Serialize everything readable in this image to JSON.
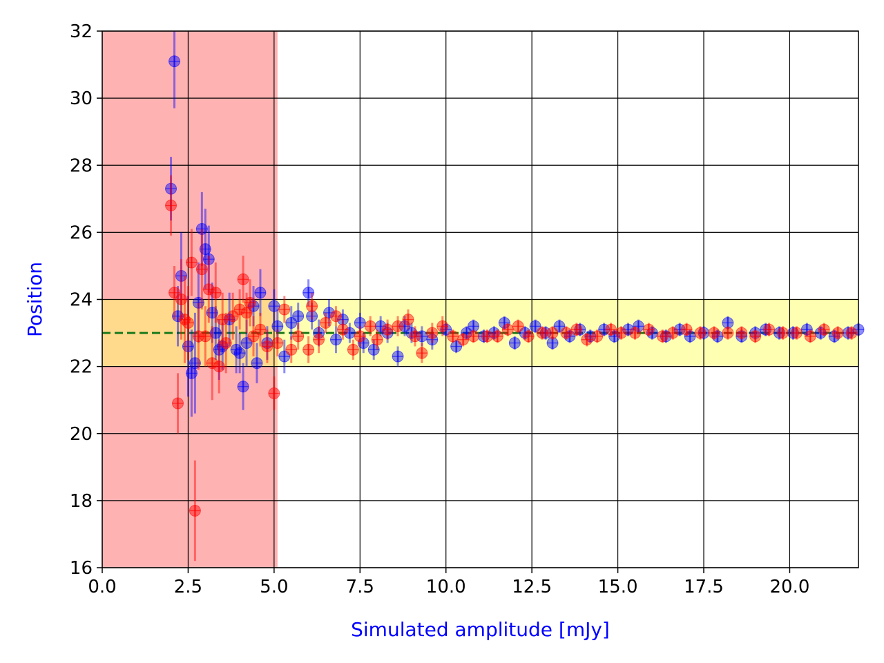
{
  "chart_data": {
    "type": "scatter",
    "xlabel": "Simulated amplitude [mJy]",
    "ylabel": "Position",
    "xlim": [
      0,
      22
    ],
    "ylim": [
      16,
      32
    ],
    "xticks": [
      0.0,
      2.5,
      5.0,
      7.5,
      10.0,
      12.5,
      15.0,
      17.5,
      20.0
    ],
    "xtick_labels": [
      "0.0",
      "2.5",
      "5.0",
      "7.5",
      "10.0",
      "12.5",
      "15.0",
      "17.5",
      "20.0"
    ],
    "yticks": [
      16,
      18,
      20,
      22,
      24,
      26,
      28,
      30,
      32
    ],
    "ytick_labels": [
      "16",
      "18",
      "20",
      "22",
      "24",
      "26",
      "28",
      "30",
      "32"
    ],
    "grid": true,
    "label_color": "#0000ff",
    "shaded_regions": [
      {
        "x": [
          0,
          5.1
        ],
        "y": [
          16,
          32
        ],
        "color": "#ff7f7f",
        "opacity": 0.6
      },
      {
        "x": [
          0,
          22
        ],
        "y": [
          22,
          24
        ],
        "color": "#ffff66",
        "opacity": 0.5
      }
    ],
    "reference_line": {
      "y": 23,
      "style": "dashed",
      "color": "#1a7a1a"
    },
    "series": [
      {
        "color": "#0000ff",
        "points": [
          [
            2.0,
            27.3,
            0.95
          ],
          [
            2.1,
            31.1,
            1.4
          ],
          [
            2.2,
            23.5,
            0.9
          ],
          [
            2.3,
            24.7,
            1.3
          ],
          [
            2.5,
            22.6,
            1.5
          ],
          [
            2.6,
            21.8,
            1.3
          ],
          [
            2.7,
            22.1,
            1.5
          ],
          [
            2.8,
            23.9,
            1.2
          ],
          [
            2.9,
            26.1,
            1.1
          ],
          [
            3.0,
            25.5,
            1.2
          ],
          [
            3.1,
            25.2,
            1.0
          ],
          [
            3.2,
            23.6,
            0.9
          ],
          [
            3.3,
            23.0,
            0.8
          ],
          [
            3.4,
            22.5,
            0.9
          ],
          [
            3.5,
            22.6,
            0.7
          ],
          [
            3.7,
            23.4,
            0.8
          ],
          [
            3.9,
            22.5,
            0.7
          ],
          [
            4.0,
            22.4,
            0.6
          ],
          [
            4.1,
            21.4,
            0.7
          ],
          [
            4.2,
            22.7,
            0.7
          ],
          [
            4.4,
            23.8,
            0.6
          ],
          [
            4.5,
            22.1,
            0.6
          ],
          [
            4.6,
            24.2,
            0.7
          ],
          [
            4.8,
            22.7,
            0.5
          ],
          [
            5.0,
            23.8,
            0.5
          ],
          [
            5.1,
            23.2,
            0.5
          ],
          [
            5.3,
            22.3,
            0.5
          ],
          [
            5.5,
            23.3,
            0.5
          ],
          [
            5.7,
            23.5,
            0.4
          ],
          [
            6.0,
            24.2,
            0.4
          ],
          [
            6.1,
            23.5,
            0.4
          ],
          [
            6.3,
            23.0,
            0.4
          ],
          [
            6.6,
            23.6,
            0.4
          ],
          [
            6.8,
            22.8,
            0.4
          ],
          [
            7.0,
            23.4,
            0.3
          ],
          [
            7.2,
            23.0,
            0.3
          ],
          [
            7.5,
            23.3,
            0.3
          ],
          [
            7.6,
            22.7,
            0.3
          ],
          [
            7.9,
            22.5,
            0.3
          ],
          [
            8.1,
            23.2,
            0.3
          ],
          [
            8.3,
            23.0,
            0.3
          ],
          [
            8.6,
            22.3,
            0.3
          ],
          [
            8.8,
            23.2,
            0.3
          ],
          [
            9.0,
            23.0,
            0.3
          ],
          [
            9.3,
            22.9,
            0.3
          ],
          [
            9.6,
            22.8,
            0.3
          ],
          [
            10.0,
            23.1,
            0.2
          ],
          [
            10.3,
            22.6,
            0.2
          ],
          [
            10.6,
            23.0,
            0.2
          ],
          [
            10.8,
            23.2,
            0.2
          ],
          [
            11.1,
            22.9,
            0.2
          ],
          [
            11.4,
            23.0,
            0.2
          ],
          [
            11.7,
            23.3,
            0.2
          ],
          [
            12.0,
            22.7,
            0.2
          ],
          [
            12.3,
            23.0,
            0.2
          ],
          [
            12.6,
            23.2,
            0.2
          ],
          [
            12.9,
            23.0,
            0.2
          ],
          [
            13.1,
            22.7,
            0.2
          ],
          [
            13.3,
            23.2,
            0.2
          ],
          [
            13.6,
            22.9,
            0.2
          ],
          [
            13.9,
            23.1,
            0.2
          ],
          [
            14.2,
            22.9,
            0.2
          ],
          [
            14.6,
            23.1,
            0.2
          ],
          [
            14.9,
            22.9,
            0.2
          ],
          [
            15.3,
            23.1,
            0.2
          ],
          [
            15.6,
            23.2,
            0.2
          ],
          [
            16.0,
            23.0,
            0.2
          ],
          [
            16.4,
            22.9,
            0.2
          ],
          [
            16.8,
            23.1,
            0.2
          ],
          [
            17.1,
            22.9,
            0.2
          ],
          [
            17.5,
            23.0,
            0.2
          ],
          [
            17.9,
            22.9,
            0.2
          ],
          [
            18.2,
            23.3,
            0.2
          ],
          [
            18.6,
            22.9,
            0.2
          ],
          [
            19.0,
            23.0,
            0.2
          ],
          [
            19.3,
            23.1,
            0.2
          ],
          [
            19.7,
            23.0,
            0.2
          ],
          [
            20.1,
            23.0,
            0.2
          ],
          [
            20.5,
            23.1,
            0.2
          ],
          [
            20.9,
            23.0,
            0.2
          ],
          [
            21.3,
            22.9,
            0.2
          ],
          [
            21.7,
            23.0,
            0.2
          ],
          [
            22.0,
            23.1,
            0.2
          ]
        ]
      },
      {
        "color": "#ff0000",
        "points": [
          [
            2.0,
            26.8,
            0.9
          ],
          [
            2.1,
            24.2,
            0.8
          ],
          [
            2.2,
            20.9,
            0.9
          ],
          [
            2.3,
            24.0,
            1.2
          ],
          [
            2.4,
            23.4,
            1.3
          ],
          [
            2.5,
            23.3,
            1.1
          ],
          [
            2.6,
            25.1,
            1.0
          ],
          [
            2.7,
            17.7,
            1.5
          ],
          [
            2.8,
            22.9,
            1.0
          ],
          [
            2.9,
            24.9,
            1.2
          ],
          [
            3.0,
            22.9,
            0.9
          ],
          [
            3.1,
            24.3,
            1.0
          ],
          [
            3.2,
            22.1,
            1.1
          ],
          [
            3.3,
            24.2,
            0.9
          ],
          [
            3.4,
            22.0,
            0.8
          ],
          [
            3.5,
            23.4,
            0.8
          ],
          [
            3.6,
            22.7,
            0.9
          ],
          [
            3.8,
            23.5,
            0.7
          ],
          [
            4.0,
            23.7,
            0.6
          ],
          [
            4.1,
            24.6,
            0.7
          ],
          [
            4.2,
            23.6,
            0.6
          ],
          [
            4.3,
            23.9,
            0.7
          ],
          [
            4.4,
            22.9,
            0.6
          ],
          [
            4.6,
            23.1,
            0.5
          ],
          [
            4.8,
            22.6,
            0.5
          ],
          [
            5.0,
            21.2,
            0.5
          ],
          [
            5.1,
            22.7,
            0.4
          ],
          [
            5.3,
            23.7,
            0.4
          ],
          [
            5.5,
            22.5,
            0.4
          ],
          [
            5.7,
            22.9,
            0.4
          ],
          [
            6.0,
            22.5,
            0.4
          ],
          [
            6.1,
            23.8,
            0.4
          ],
          [
            6.3,
            22.8,
            0.4
          ],
          [
            6.5,
            23.3,
            0.3
          ],
          [
            6.8,
            23.5,
            0.3
          ],
          [
            7.0,
            23.1,
            0.3
          ],
          [
            7.3,
            22.5,
            0.3
          ],
          [
            7.5,
            22.9,
            0.3
          ],
          [
            7.8,
            23.2,
            0.3
          ],
          [
            8.0,
            22.8,
            0.3
          ],
          [
            8.3,
            23.1,
            0.3
          ],
          [
            8.6,
            23.2,
            0.3
          ],
          [
            8.9,
            23.4,
            0.3
          ],
          [
            9.1,
            22.9,
            0.3
          ],
          [
            9.3,
            22.4,
            0.3
          ],
          [
            9.6,
            23.0,
            0.3
          ],
          [
            9.9,
            23.2,
            0.3
          ],
          [
            10.2,
            22.9,
            0.2
          ],
          [
            10.5,
            22.8,
            0.2
          ],
          [
            10.8,
            22.9,
            0.2
          ],
          [
            11.2,
            22.9,
            0.2
          ],
          [
            11.5,
            22.9,
            0.2
          ],
          [
            11.8,
            23.1,
            0.2
          ],
          [
            12.1,
            23.2,
            0.2
          ],
          [
            12.4,
            22.9,
            0.2
          ],
          [
            12.8,
            23.0,
            0.2
          ],
          [
            13.1,
            23.0,
            0.2
          ],
          [
            13.5,
            23.0,
            0.2
          ],
          [
            13.8,
            23.1,
            0.2
          ],
          [
            14.1,
            22.8,
            0.2
          ],
          [
            14.4,
            22.9,
            0.2
          ],
          [
            14.8,
            23.1,
            0.2
          ],
          [
            15.1,
            23.0,
            0.2
          ],
          [
            15.5,
            23.0,
            0.2
          ],
          [
            15.9,
            23.1,
            0.2
          ],
          [
            16.3,
            22.9,
            0.2
          ],
          [
            16.6,
            23.0,
            0.2
          ],
          [
            17.0,
            23.1,
            0.2
          ],
          [
            17.4,
            23.0,
            0.2
          ],
          [
            17.8,
            23.0,
            0.2
          ],
          [
            18.2,
            23.0,
            0.2
          ],
          [
            18.6,
            23.0,
            0.2
          ],
          [
            19.0,
            22.9,
            0.2
          ],
          [
            19.4,
            23.1,
            0.2
          ],
          [
            19.8,
            23.0,
            0.2
          ],
          [
            20.2,
            23.0,
            0.2
          ],
          [
            20.6,
            22.9,
            0.2
          ],
          [
            21.0,
            23.1,
            0.2
          ],
          [
            21.4,
            23.0,
            0.2
          ],
          [
            21.8,
            23.0,
            0.2
          ]
        ]
      }
    ]
  }
}
